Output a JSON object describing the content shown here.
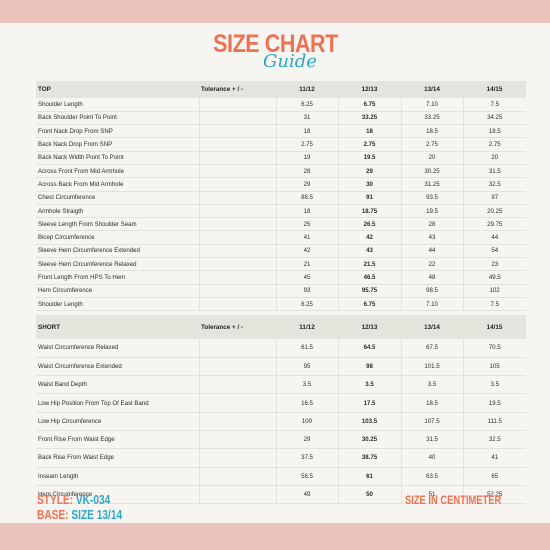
{
  "title": "SIZE CHART",
  "subtitle": "Guide",
  "top_table": {
    "headers": [
      "TOP",
      "Tolerance + / -",
      "11/12",
      "12/13",
      "13/14",
      "14/15"
    ],
    "rows": [
      [
        "Shoulder Length",
        "",
        "6.25",
        "6.75",
        "7.10",
        "7.5"
      ],
      [
        "Back Shoulder Point To Point",
        "",
        "31",
        "33.25",
        "33.25",
        "34.25"
      ],
      [
        "Front Nack Drop From SNP",
        "",
        "18",
        "18",
        "18.5",
        "18.5"
      ],
      [
        "Back Nack Drop From SNP",
        "",
        "2.75",
        "2.75",
        "2.75",
        "2.75"
      ],
      [
        "Back Nack Width Point To Point",
        "",
        "19",
        "19.5",
        "20",
        "20"
      ],
      [
        "Across Front From Mid Armhole",
        "",
        "28",
        "29",
        "30.25",
        "31.5"
      ],
      [
        "Across Back From Mid Armhole",
        "",
        "29",
        "30",
        "31.25",
        "32.5"
      ],
      [
        "Chest Circumference",
        "",
        "88.5",
        "91",
        "93.5",
        "97"
      ],
      [
        "Armhole Straigth",
        "",
        "18",
        "18.75",
        "19.5",
        "20.25"
      ],
      [
        "Sleeve Length From Shoulder Seam",
        "",
        "25",
        "26.5",
        "28",
        "29.75"
      ],
      [
        "Bicep Circumference",
        "",
        "41",
        "42",
        "43",
        "44"
      ],
      [
        "Sleeve Hem Circumference Extended",
        "",
        "42",
        "43",
        "44",
        "54"
      ],
      [
        "Sleeve Hem Circumference Relaxed",
        "",
        "21",
        "21.5",
        "22",
        "23"
      ],
      [
        "Front Length From HPS To Hem",
        "",
        "45",
        "46.5",
        "48",
        "49.5"
      ],
      [
        "Hem Circumference",
        "",
        "93",
        "95.75",
        "98.5",
        "102"
      ],
      [
        "Shoulder Length",
        "",
        "6.25",
        "6.75",
        "7.10",
        "7.5"
      ]
    ]
  },
  "short_table": {
    "headers": [
      "SHORT",
      "Tolerance + / -",
      "11/12",
      "12/13",
      "13/14",
      "14/15"
    ],
    "rows": [
      [
        "Waist Circumference Relaxed",
        "",
        "61.5",
        "64.5",
        "67.5",
        "70.5"
      ],
      [
        "Waist Circumference Extended",
        "",
        "95",
        "98",
        "101.5",
        "105"
      ],
      [
        "Waist Band Depth",
        "",
        "3.5",
        "3.5",
        "3.5",
        "3.5"
      ],
      [
        "Low Hip Position From Top Of East Band",
        "",
        "16.5",
        "17.5",
        "18.5",
        "19.5"
      ],
      [
        "Low Hip Circumference",
        "",
        "100",
        "103.5",
        "107.5",
        "111.5"
      ],
      [
        "Front Rise From Waist Edge",
        "",
        "29",
        "30.25",
        "31.5",
        "32.5"
      ],
      [
        "Back Rise From Waist Edge",
        "",
        "37.5",
        "38.75",
        "40",
        "41"
      ],
      [
        "Inseam Length",
        "",
        "58.5",
        "61",
        "63.5",
        "65"
      ],
      [
        "Hem Circumference",
        "",
        "49",
        "50",
        "51",
        "52.25"
      ]
    ]
  },
  "footer": {
    "style_label": "STYLE:",
    "style_value": "VK-034",
    "base_label": "BASE:",
    "base_value": "SIZE 13/14",
    "unit_note": "SIZE IN CENTIMETER"
  },
  "colors": {
    "accent_orange": "#f0714f",
    "accent_blue": "#2fa6c9",
    "background_pink": "#ecc2bd"
  }
}
